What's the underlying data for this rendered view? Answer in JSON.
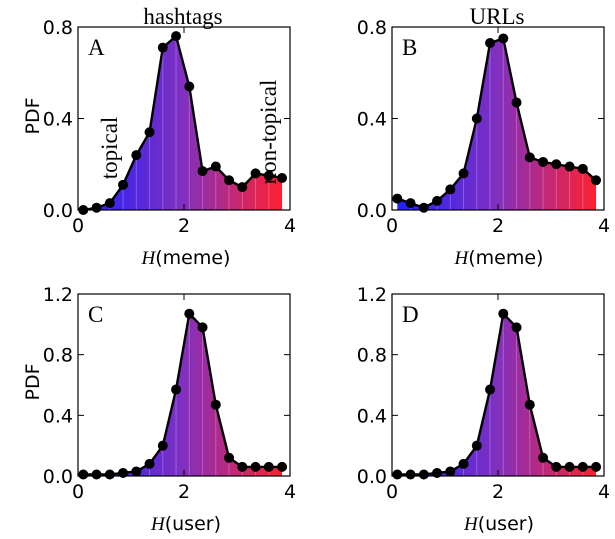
{
  "colors": {
    "low": "#2020ff",
    "high": "#ff2030",
    "line": "#000000"
  },
  "chart_data": [
    {
      "type": "area",
      "title": "hashtags",
      "letter": "A",
      "xlabel_italic": "H",
      "xlabel_rest": "(meme)",
      "ylabel": "PDF",
      "xlim": [
        0,
        4
      ],
      "ylim": [
        0,
        0.8
      ],
      "xticks": [
        "0",
        "2",
        "4"
      ],
      "yticks": [
        "0.0",
        "0.4",
        "0.8"
      ],
      "ytick_values": [
        0,
        0.4,
        0.8
      ],
      "annotations": [
        {
          "text": "topical",
          "color": "#2020ff"
        },
        {
          "text": "non-topical",
          "color": "#ff2030"
        }
      ],
      "x": [
        0.1,
        0.35,
        0.6,
        0.85,
        1.1,
        1.35,
        1.6,
        1.85,
        2.1,
        2.35,
        2.6,
        2.85,
        3.1,
        3.35,
        3.6,
        3.85
      ],
      "y": [
        0.0,
        0.01,
        0.03,
        0.11,
        0.24,
        0.34,
        0.71,
        0.76,
        0.54,
        0.17,
        0.19,
        0.13,
        0.1,
        0.16,
        0.15,
        0.14
      ]
    },
    {
      "type": "area",
      "title": "URLs",
      "letter": "B",
      "xlabel_italic": "H",
      "xlabel_rest": "(meme)",
      "ylabel": "",
      "xlim": [
        0,
        4
      ],
      "ylim": [
        0,
        0.8
      ],
      "xticks": [
        "0",
        "2",
        "4"
      ],
      "yticks": [
        "0.0",
        "0.4",
        "0.8"
      ],
      "ytick_values": [
        0,
        0.4,
        0.8
      ],
      "annotations": [],
      "x": [
        0.1,
        0.35,
        0.6,
        0.85,
        1.1,
        1.35,
        1.6,
        1.85,
        2.1,
        2.35,
        2.6,
        2.85,
        3.1,
        3.35,
        3.6,
        3.85
      ],
      "y": [
        0.05,
        0.03,
        0.01,
        0.04,
        0.09,
        0.16,
        0.4,
        0.73,
        0.75,
        0.47,
        0.23,
        0.21,
        0.2,
        0.19,
        0.18,
        0.13
      ]
    },
    {
      "type": "area",
      "title": "",
      "letter": "C",
      "xlabel_italic": "H",
      "xlabel_rest": "(user)",
      "ylabel": "PDF",
      "xlim": [
        0,
        4
      ],
      "ylim": [
        0,
        1.2
      ],
      "xticks": [
        "0",
        "2",
        "4"
      ],
      "yticks": [
        "0.0",
        "0.4",
        "0.8",
        "1.2"
      ],
      "ytick_values": [
        0,
        0.4,
        0.8,
        1.2
      ],
      "annotations": [],
      "x": [
        0.1,
        0.35,
        0.6,
        0.85,
        1.1,
        1.35,
        1.6,
        1.85,
        2.1,
        2.35,
        2.6,
        2.85,
        3.1,
        3.35,
        3.6,
        3.85
      ],
      "y": [
        0.01,
        0.01,
        0.01,
        0.02,
        0.03,
        0.08,
        0.2,
        0.57,
        1.07,
        0.98,
        0.47,
        0.12,
        0.06,
        0.06,
        0.06,
        0.06
      ]
    },
    {
      "type": "area",
      "title": "",
      "letter": "D",
      "xlabel_italic": "H",
      "xlabel_rest": "(user)",
      "ylabel": "",
      "xlim": [
        0,
        4
      ],
      "ylim": [
        0,
        1.2
      ],
      "xticks": [
        "0",
        "2",
        "4"
      ],
      "yticks": [
        "0.0",
        "0.4",
        "0.8",
        "1.2"
      ],
      "ytick_values": [
        0,
        0.4,
        0.8,
        1.2
      ],
      "annotations": [],
      "x": [
        0.1,
        0.35,
        0.6,
        0.85,
        1.1,
        1.35,
        1.6,
        1.85,
        2.1,
        2.35,
        2.6,
        2.85,
        3.1,
        3.35,
        3.6,
        3.85
      ],
      "y": [
        0.01,
        0.01,
        0.01,
        0.02,
        0.03,
        0.08,
        0.2,
        0.57,
        1.07,
        0.98,
        0.47,
        0.12,
        0.06,
        0.06,
        0.06,
        0.06
      ]
    }
  ]
}
